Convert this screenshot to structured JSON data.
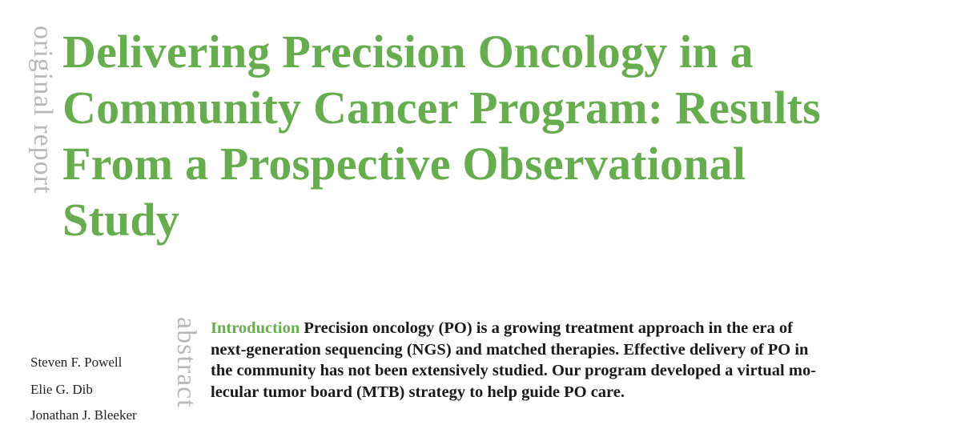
{
  "side_labels": {
    "section": "original report",
    "abstract": "abstract"
  },
  "title_lines": [
    "Delivering Precision Oncology in a",
    "Community Cancer Program: Results",
    "From a Prospective Observational",
    "Study"
  ],
  "authors": [
    "Steven F. Powell",
    "Elie G. Dib",
    "Jonathan J. Bleeker"
  ],
  "abstract": {
    "heading": "Introduction",
    "lines": [
      "Precision oncology (PO) is a growing treatment approach in the era of",
      "next-generation sequencing (NGS) and matched therapies. Effective delivery of PO in",
      "the community has not been extensively studied. Our program developed a virtual mo-",
      "lecular tumor board (MTB) strategy to help guide PO care."
    ]
  },
  "colors": {
    "accent": "#67ad4f",
    "side_label": "#b8b8b8",
    "text": "#1a1a1a"
  }
}
